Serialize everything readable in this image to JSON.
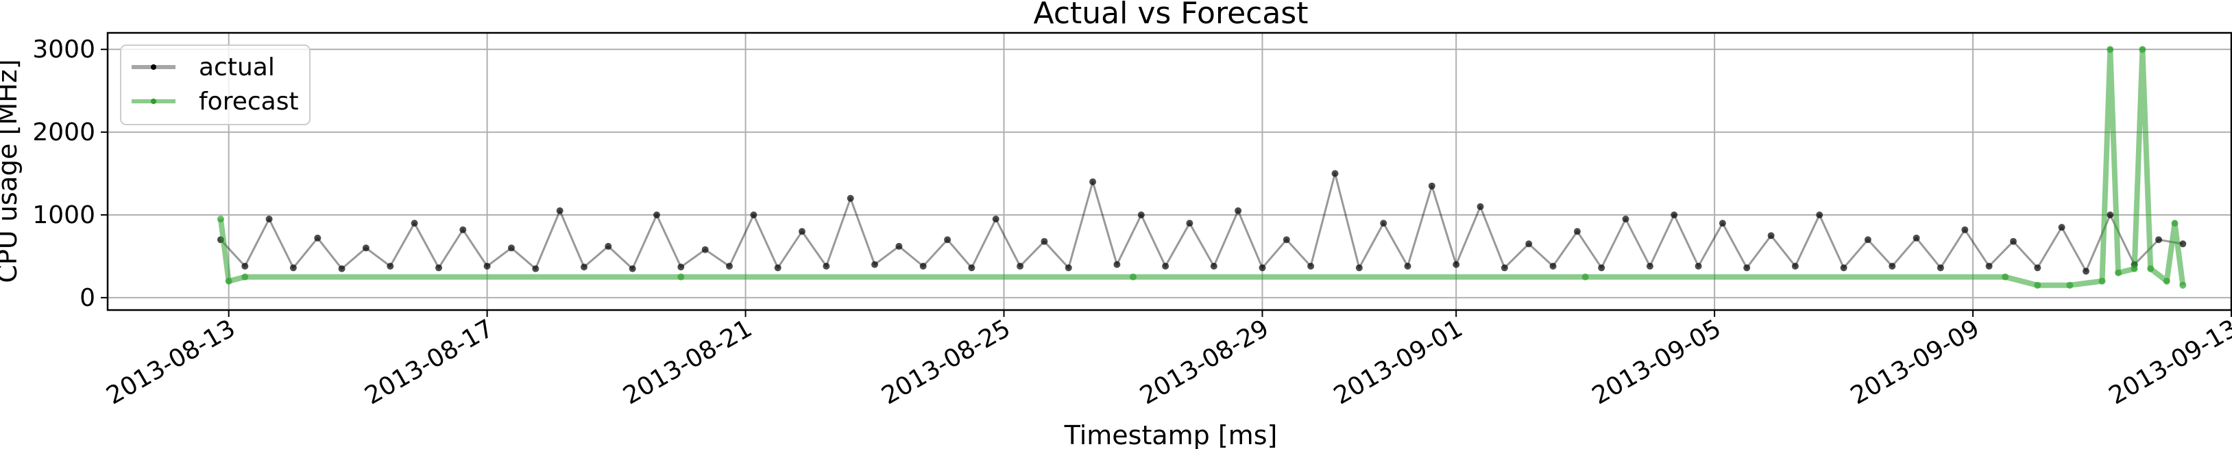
{
  "chart_data": {
    "type": "line",
    "title": "Actual vs Forecast",
    "xlabel": "Timestamp [ms]",
    "ylabel": "CPU usage [MHz]",
    "x_ticks": [
      "2013-08-13",
      "2013-08-17",
      "2013-08-21",
      "2013-08-25",
      "2013-08-29",
      "2013-09-01",
      "2013-09-05",
      "2013-09-09",
      "2013-09-13"
    ],
    "y_ticks": [
      "0",
      "1000",
      "2000",
      "3000"
    ],
    "ylim": [
      -150,
      3200
    ],
    "xlim": [
      "2013-08-11T03:00",
      "2013-09-13T00:00"
    ],
    "grid": true,
    "legend_position": "top-left",
    "series": [
      {
        "name": "actual",
        "color": "#000000",
        "x": [
          "2013-08-12T21:00",
          "2013-08-13T06:00",
          "2013-08-13T15:00",
          "2013-08-14T00:00",
          "2013-08-14T09:00",
          "2013-08-14T18:00",
          "2013-08-15T03:00",
          "2013-08-15T12:00",
          "2013-08-15T21:00",
          "2013-08-16T06:00",
          "2013-08-16T15:00",
          "2013-08-17T00:00",
          "2013-08-17T09:00",
          "2013-08-17T18:00",
          "2013-08-18T03:00",
          "2013-08-18T12:00",
          "2013-08-18T21:00",
          "2013-08-19T06:00",
          "2013-08-19T15:00",
          "2013-08-20T00:00",
          "2013-08-20T09:00",
          "2013-08-20T18:00",
          "2013-08-21T03:00",
          "2013-08-21T12:00",
          "2013-08-21T21:00",
          "2013-08-22T06:00",
          "2013-08-22T15:00",
          "2013-08-23T00:00",
          "2013-08-23T09:00",
          "2013-08-23T18:00",
          "2013-08-24T03:00",
          "2013-08-24T12:00",
          "2013-08-24T21:00",
          "2013-08-25T06:00",
          "2013-08-25T15:00",
          "2013-08-26T00:00",
          "2013-08-26T09:00",
          "2013-08-26T18:00",
          "2013-08-27T03:00",
          "2013-08-27T12:00",
          "2013-08-27T21:00",
          "2013-08-28T06:00",
          "2013-08-28T15:00",
          "2013-08-29T00:00",
          "2013-08-29T09:00",
          "2013-08-29T18:00",
          "2013-08-30T03:00",
          "2013-08-30T12:00",
          "2013-08-30T21:00",
          "2013-08-31T06:00",
          "2013-08-31T15:00",
          "2013-09-01T00:00",
          "2013-09-01T09:00",
          "2013-09-01T18:00",
          "2013-09-02T03:00",
          "2013-09-02T12:00",
          "2013-09-02T21:00",
          "2013-09-03T06:00",
          "2013-09-03T15:00",
          "2013-09-04T00:00",
          "2013-09-04T09:00",
          "2013-09-04T18:00",
          "2013-09-05T03:00",
          "2013-09-05T12:00",
          "2013-09-05T21:00",
          "2013-09-06T06:00",
          "2013-09-06T15:00",
          "2013-09-07T00:00",
          "2013-09-07T09:00",
          "2013-09-07T18:00",
          "2013-09-08T03:00",
          "2013-09-08T12:00",
          "2013-09-08T21:00",
          "2013-09-09T06:00",
          "2013-09-09T15:00",
          "2013-09-10T00:00",
          "2013-09-10T09:00",
          "2013-09-10T18:00",
          "2013-09-11T03:00",
          "2013-09-11T12:00",
          "2013-09-11T21:00",
          "2013-09-12T06:00"
        ],
        "values": [
          700,
          380,
          950,
          360,
          720,
          350,
          600,
          380,
          900,
          360,
          820,
          380,
          600,
          350,
          1050,
          370,
          620,
          350,
          1000,
          370,
          580,
          380,
          1000,
          360,
          800,
          380,
          1200,
          400,
          620,
          380,
          700,
          360,
          950,
          380,
          680,
          360,
          1400,
          400,
          1000,
          380,
          900,
          380,
          1050,
          360,
          700,
          380,
          1500,
          360,
          900,
          380,
          1350,
          400,
          1100,
          360,
          650,
          380,
          800,
          360,
          950,
          380,
          1000,
          380,
          900,
          360,
          750,
          380,
          1000,
          360,
          700,
          380,
          720,
          360,
          820,
          380,
          680,
          360,
          850,
          320,
          1000,
          400,
          700,
          650
        ]
      },
      {
        "name": "forecast",
        "color": "#2ca02c",
        "x": [
          "2013-08-12T21:00",
          "2013-08-13T00:00",
          "2013-08-13T06:00",
          "2013-08-20T00:00",
          "2013-08-27T00:00",
          "2013-09-03T00:00",
          "2013-09-09T12:00",
          "2013-09-10T00:00",
          "2013-09-10T12:00",
          "2013-09-11T00:00",
          "2013-09-11T03:00",
          "2013-09-11T06:00",
          "2013-09-11T12:00",
          "2013-09-11T15:00",
          "2013-09-11T18:00",
          "2013-09-12T00:00",
          "2013-09-12T03:00",
          "2013-09-12T06:00"
        ],
        "values": [
          950,
          200,
          250,
          250,
          250,
          250,
          250,
          150,
          150,
          200,
          3000,
          300,
          350,
          3000,
          350,
          200,
          900,
          150
        ]
      }
    ]
  }
}
